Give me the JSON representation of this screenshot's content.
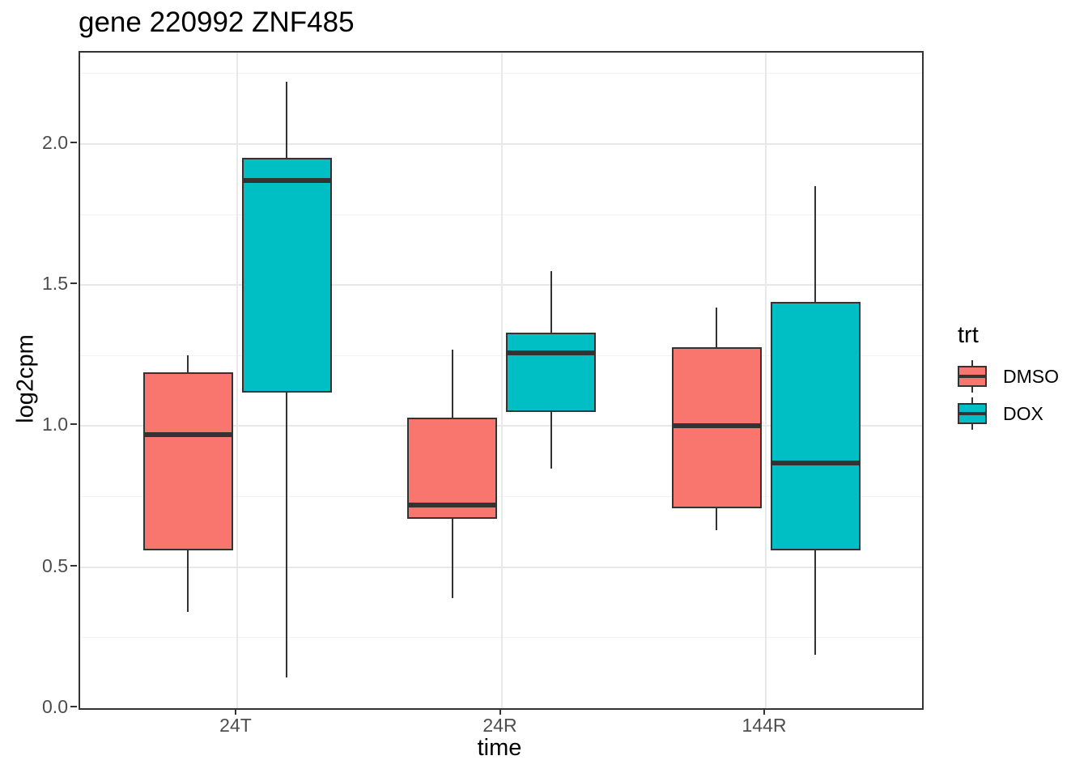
{
  "title": "gene 220992 ZNF485",
  "axes": {
    "x": {
      "label": "time"
    },
    "y": {
      "label": "log2cpm",
      "tick_labels": [
        "0.0",
        "0.5",
        "1.0",
        "1.5",
        "2.0"
      ],
      "tick_values": [
        0.0,
        0.5,
        1.0,
        1.5,
        2.0
      ]
    }
  },
  "legend": {
    "title": "trt",
    "items": [
      {
        "label": "DMSO",
        "color": "#F8766D",
        "glyph": "boxplot-key-icon"
      },
      {
        "label": "DOX",
        "color": "#00BFC4",
        "glyph": "boxplot-key-icon"
      }
    ]
  },
  "colors": {
    "dmso_fill": "#F8766D",
    "dox_fill": "#00BFC4",
    "box_outline": "#333333",
    "panel_border": "#333333",
    "grid_major": "#E8E8E8",
    "grid_minor": "#F2F2F2",
    "tick_text": "#4D4D4D",
    "background": "#FFFFFF"
  },
  "chart_data": {
    "type": "boxplot",
    "title": "gene 220992 ZNF485",
    "xlabel": "time",
    "ylabel": "log2cpm",
    "categories": [
      "24T",
      "24R",
      "144R"
    ],
    "ylim": [
      0,
      2.33
    ],
    "grid": {
      "major_y": [
        0.0,
        0.5,
        1.0,
        1.5,
        2.0
      ],
      "minor_y": [
        0.25,
        0.75,
        1.25,
        1.75,
        2.25
      ],
      "vertical_major_at_categories": true
    },
    "legend_title": "trt",
    "legend_position": "right",
    "series": [
      {
        "name": "DMSO",
        "color": "#F8766D",
        "boxes": [
          {
            "category": "24T",
            "whisker_low": 0.34,
            "q1": 0.56,
            "median": 0.97,
            "q3": 1.19,
            "whisker_high": 1.25
          },
          {
            "category": "24R",
            "whisker_low": 0.39,
            "q1": 0.67,
            "median": 0.72,
            "q3": 1.03,
            "whisker_high": 1.27
          },
          {
            "category": "144R",
            "whisker_low": 0.63,
            "q1": 0.71,
            "median": 1.0,
            "q3": 1.28,
            "whisker_high": 1.42
          }
        ]
      },
      {
        "name": "DOX",
        "color": "#00BFC4",
        "boxes": [
          {
            "category": "24T",
            "whisker_low": 0.11,
            "q1": 1.12,
            "median": 1.87,
            "q3": 1.95,
            "whisker_high": 2.22
          },
          {
            "category": "24R",
            "whisker_low": 0.85,
            "q1": 1.05,
            "median": 1.26,
            "q3": 1.33,
            "whisker_high": 1.55
          },
          {
            "category": "144R",
            "whisker_low": 0.19,
            "q1": 0.56,
            "median": 0.87,
            "q3": 1.44,
            "whisker_high": 1.85
          }
        ]
      }
    ]
  }
}
